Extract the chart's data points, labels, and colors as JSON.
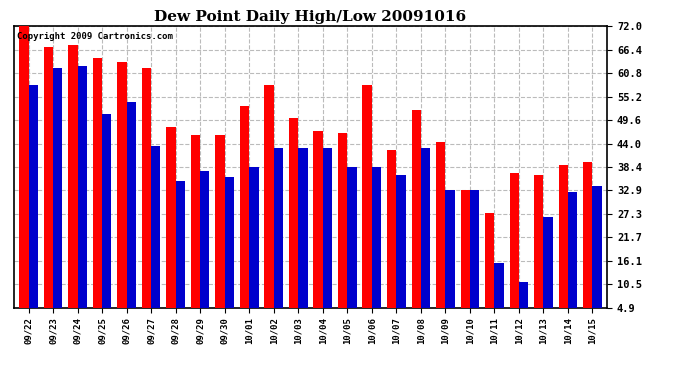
{
  "title": "Dew Point Daily High/Low 20091016",
  "copyright": "Copyright 2009 Cartronics.com",
  "dates": [
    "09/22",
    "09/23",
    "09/24",
    "09/25",
    "09/26",
    "09/27",
    "09/28",
    "09/29",
    "09/30",
    "10/01",
    "10/02",
    "10/03",
    "10/04",
    "10/05",
    "10/06",
    "10/07",
    "10/08",
    "10/09",
    "10/10",
    "10/11",
    "10/12",
    "10/13",
    "10/14",
    "10/15"
  ],
  "highs": [
    72.0,
    67.0,
    67.5,
    64.5,
    63.5,
    62.0,
    48.0,
    46.0,
    46.0,
    53.0,
    58.0,
    50.0,
    47.0,
    46.5,
    58.0,
    42.5,
    52.0,
    44.5,
    33.0,
    27.5,
    37.0,
    36.5,
    39.0,
    39.5
  ],
  "lows": [
    58.0,
    62.0,
    62.5,
    51.0,
    54.0,
    43.5,
    35.0,
    37.5,
    36.0,
    38.5,
    43.0,
    43.0,
    43.0,
    38.5,
    38.5,
    36.5,
    43.0,
    33.0,
    33.0,
    15.5,
    11.0,
    26.5,
    32.5,
    34.0
  ],
  "high_color": "#FF0000",
  "low_color": "#0000CC",
  "background_color": "#FFFFFF",
  "grid_color": "#BBBBBB",
  "yticks": [
    4.9,
    10.5,
    16.1,
    21.7,
    27.3,
    32.9,
    38.4,
    44.0,
    49.6,
    55.2,
    60.8,
    66.4,
    72.0
  ],
  "ymin": 4.9,
  "ymax": 72.0,
  "bar_width": 0.38,
  "figwidth": 6.9,
  "figheight": 3.75,
  "dpi": 100
}
